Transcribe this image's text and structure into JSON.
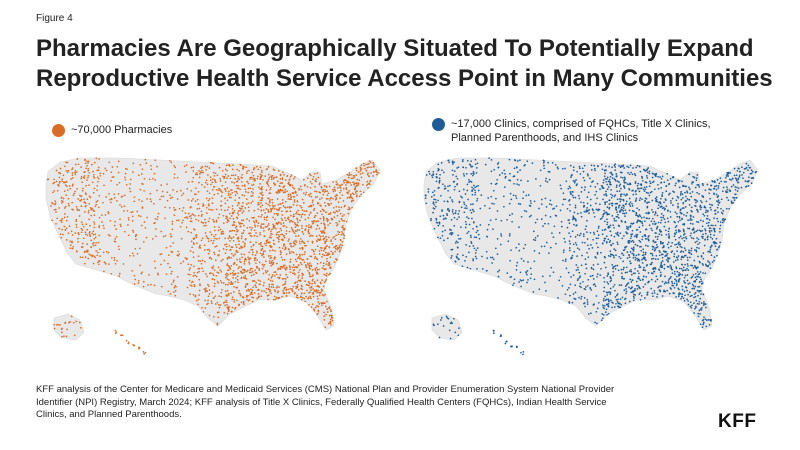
{
  "figure_label": "Figure 4",
  "title": "Pharmacies Are Geographically Situated To Potentially Expand Reproductive Health Service Access Point in Many Communities",
  "maps": [
    {
      "legend_label": "~70,000 Pharmacies",
      "color": "#D96D27"
    },
    {
      "legend_label": "~17,000 Clinics, comprised of FQHCs, Title X Clinics, Planned Parenthoods, and IHS Clinics",
      "color": "#1E5C97"
    }
  ],
  "map_base_color": "#E8E8E8",
  "source": "KFF analysis of the Center for Medicare and Medicaid Services (CMS) National Plan and Provider Enumeration System National Provider Identifier (NPI) Registry, March 2024; KFF analysis of Title X Clinics, Federally Qualified Health Centers (FQHCs), Indian Health Service Clinics, and Planned Parenthoods.",
  "logo": "KFF"
}
